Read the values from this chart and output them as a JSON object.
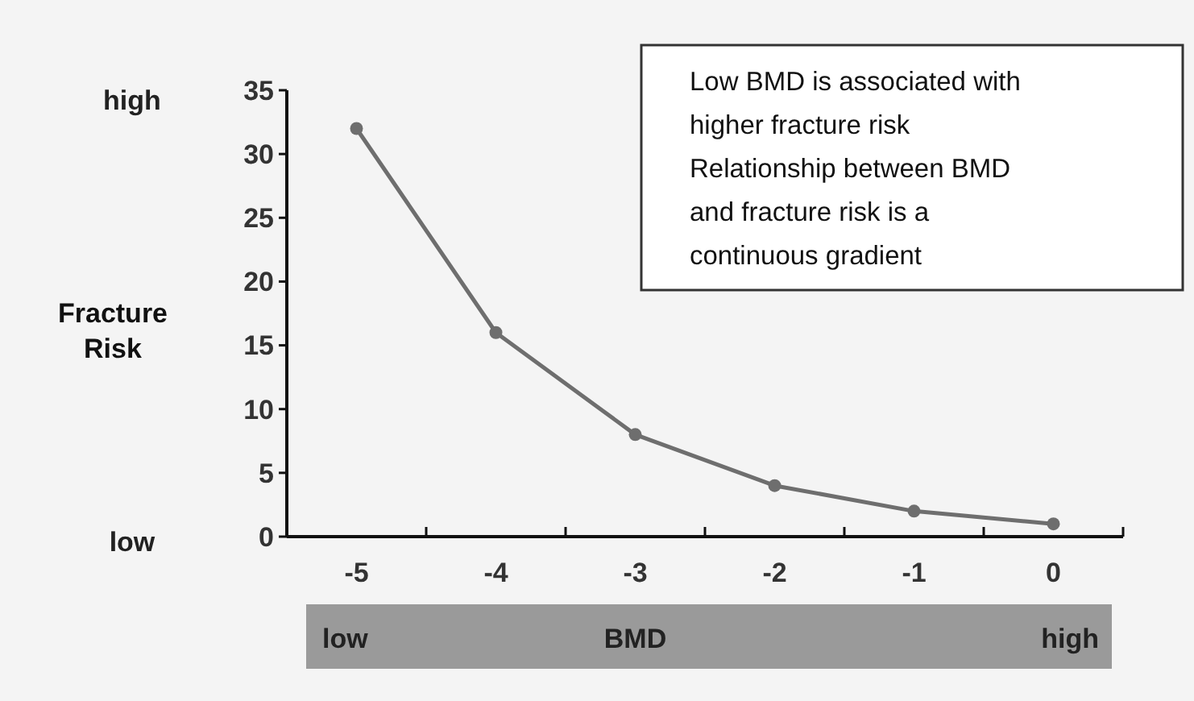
{
  "chart_data": {
    "type": "line",
    "xlabel": "BMD",
    "ylabel": "Fracture Risk",
    "x": [
      -5,
      -4,
      -3,
      -2,
      -1,
      0
    ],
    "series": [
      {
        "color": "#6e6e6e",
        "values": [
          32,
          16,
          8,
          4,
          2,
          1
        ]
      }
    ],
    "xlim": [
      -5.5,
      0.5
    ],
    "xticks": [
      {
        "value": -5.5,
        "label": null
      },
      -5,
      {
        "value": -4.5,
        "label": null
      },
      -4,
      {
        "value": -3.5,
        "label": null
      },
      -3,
      {
        "value": -2.5,
        "label": null
      },
      -2,
      {
        "value": -1.5,
        "label": null
      },
      -1,
      {
        "value": -0.5,
        "label": null
      },
      0,
      {
        "value": 0.5,
        "label": null
      }
    ],
    "ylim": [
      0,
      35
    ],
    "yticks": [
      0,
      5,
      10,
      15,
      20,
      25,
      30,
      35
    ],
    "marker": "circle",
    "line_style": "solid",
    "annotations": [
      "Low BMD is associated with\nhigher fracture risk\nRelationship between BMD\nand fracture risk is a\ncontinuous gradient",
      "high",
      "low",
      "low",
      "high"
    ]
  }
}
